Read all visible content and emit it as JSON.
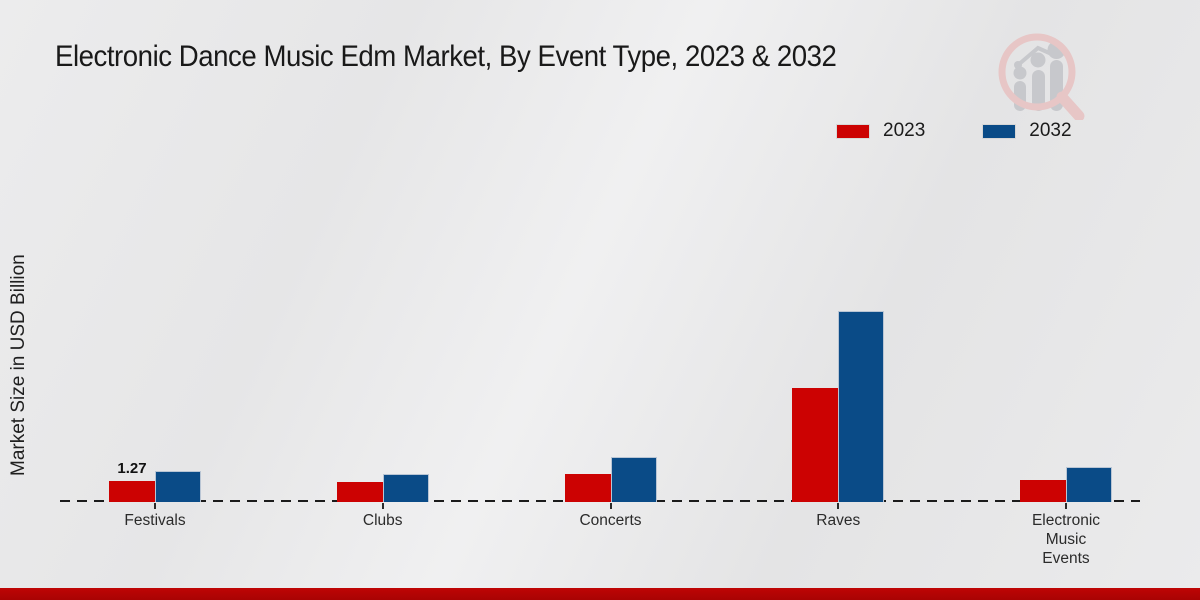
{
  "title": "Electronic Dance Music Edm Market, By Event Type, 2023 & 2032",
  "y_axis_label": "Market Size in USD Billion",
  "colors": {
    "series_2023_red": "#cc0202",
    "series_2032_blue": "#0a4b87",
    "footer_bar": "#bf0505",
    "background": "#e9e9ea"
  },
  "logo": {
    "name": "market-research-watermark",
    "ring_color": "#e7c6c6",
    "bars_color": "#c7c8cc"
  },
  "chart_data": {
    "type": "bar",
    "title": "Electronic Dance Music Edm Market, By Event Type, 2023 & 2032",
    "xlabel": "",
    "ylabel": "Market Size in USD Billion",
    "grid": false,
    "legend_position": "top-right",
    "baseline_style": "dashed",
    "ylim": [
      0,
      12.5
    ],
    "categories": [
      "Festivals",
      "Clubs",
      "Concerts",
      "Raves",
      "Electronic Music Events"
    ],
    "series": [
      {
        "name": "2023",
        "color": "#cc0202",
        "values": [
          1.27,
          1.25,
          1.72,
          7.02,
          1.33
        ]
      },
      {
        "name": "2032",
        "color": "#0a4b87",
        "values": [
          1.88,
          1.7,
          2.74,
          11.74,
          2.13
        ]
      }
    ],
    "value_labels": [
      {
        "category": "Festivals",
        "series": "2023",
        "text": "1.27"
      }
    ]
  }
}
